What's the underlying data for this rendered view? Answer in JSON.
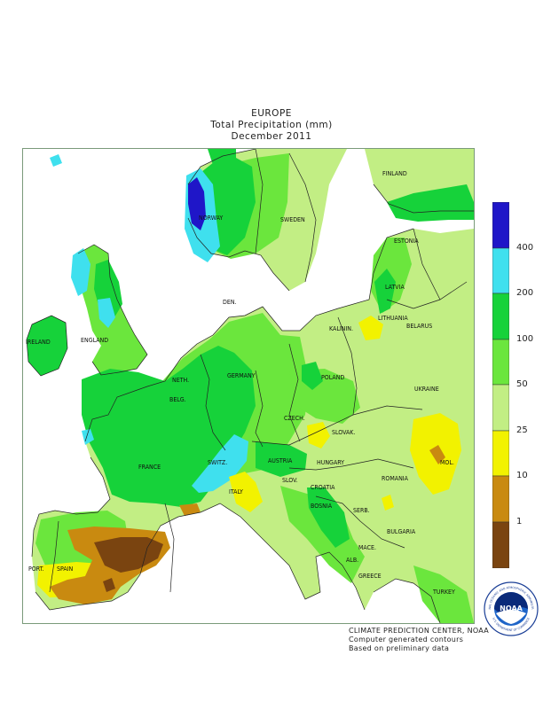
{
  "title": {
    "line1": "EUROPE",
    "line2": "Total Precipitation (mm)",
    "line3": "December 2011"
  },
  "legend": {
    "labels": [
      "400",
      "200",
      "100",
      "50",
      "25",
      "10",
      "1"
    ],
    "colors": {
      "c400plus": "#1f16c8",
      "c200": "#3fe0ee",
      "c100": "#16d23a",
      "c50": "#6be63d",
      "c25": "#c2ee84",
      "c10": "#f2f200",
      "c1": "#c98a10",
      "c0": "#7a4410"
    }
  },
  "countries": [
    "FINLAND",
    "NORWAY",
    "SWEDEN",
    "ESTONIA",
    "LATVIA",
    "LITHUANIA",
    "KALININ.",
    "DEN.",
    "IRELAND",
    "ENGLAND",
    "NETH.",
    "BELG.",
    "GERMANY",
    "POLAND",
    "BELARUS",
    "CZECH.",
    "SLOVAK.",
    "UKRAINE",
    "FRANCE",
    "SWITZ.",
    "AUSTRIA",
    "HUNGARY",
    "MOL.",
    "ROMANIA",
    "SLOV.",
    "CROATIA",
    "ITALY",
    "BOSNIA",
    "SERB.",
    "BULGARIA",
    "MACE.",
    "ALB.",
    "GREECE",
    "TURKEY",
    "PORT.",
    "SPAIN"
  ],
  "credits": {
    "line1": "CLIMATE PREDICTION CENTER, NOAA",
    "line2": "Computer generated contours",
    "line3": "Based on preliminary data"
  },
  "logo": {
    "text": "NOAA",
    "ring_top": "NATIONAL OCEANIC AND ATMOSPHERIC ADMINISTRATION",
    "ring_bottom": "U.S. DEPARTMENT OF COMMERCE"
  }
}
